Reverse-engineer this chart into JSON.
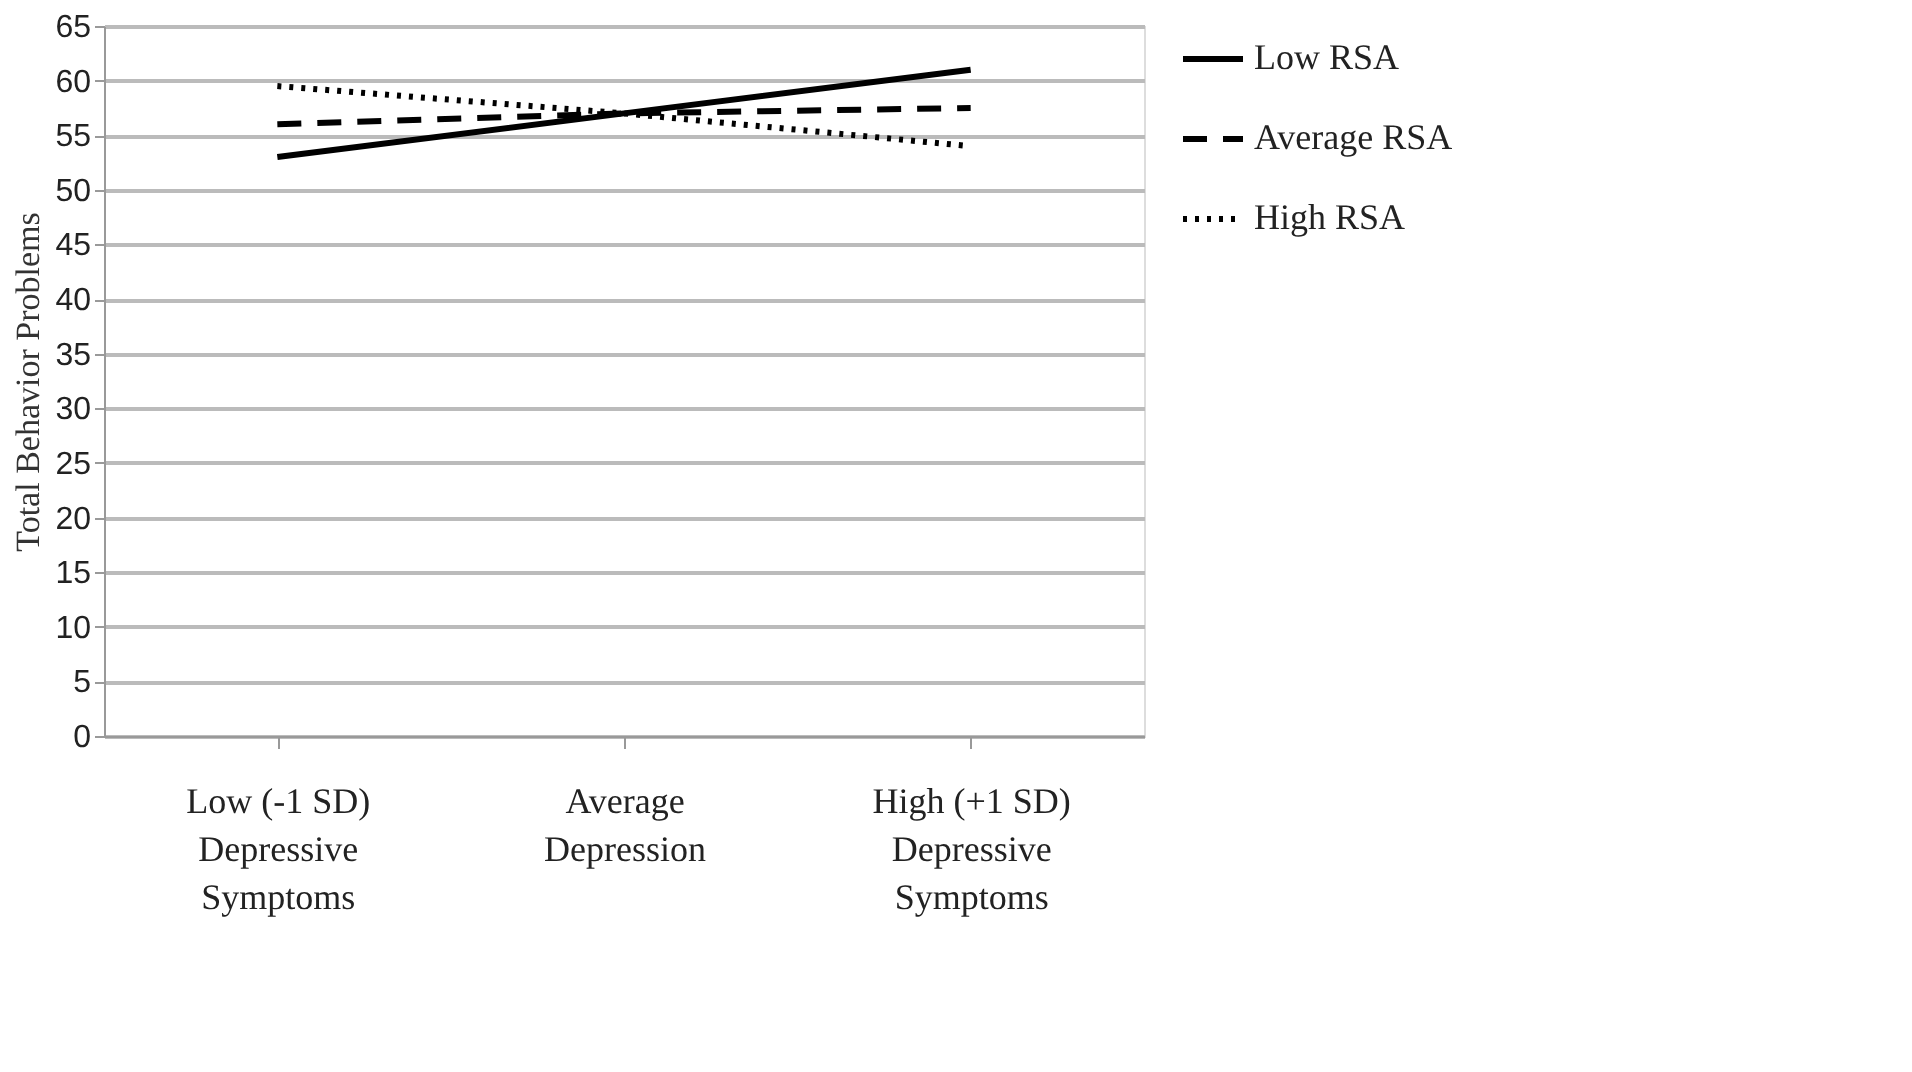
{
  "chart_data": {
    "type": "line",
    "ylabel": "Total Behavior Problems",
    "categories": [
      "Low (-1 SD)\nDepressive\nSymptoms",
      "Average\nDepression",
      "High (+1 SD)\nDepressive\nSymptoms"
    ],
    "series": [
      {
        "name": "Low RSA",
        "color": "#000000",
        "line_style": "solid",
        "values": [
          53,
          57,
          61
        ]
      },
      {
        "name": "Average RSA",
        "color": "#000000",
        "line_style": "dashed",
        "values": [
          56,
          57,
          57.5
        ]
      },
      {
        "name": "High RSA",
        "color": "#000000",
        "line_style": "dotted",
        "values": [
          59.5,
          57,
          54
        ]
      }
    ],
    "ylim": [
      0,
      65
    ],
    "yticks": [
      0,
      5,
      10,
      15,
      20,
      25,
      30,
      35,
      40,
      45,
      50,
      55,
      60,
      65
    ],
    "grid": "y",
    "legend": "right",
    "marker": "none"
  }
}
